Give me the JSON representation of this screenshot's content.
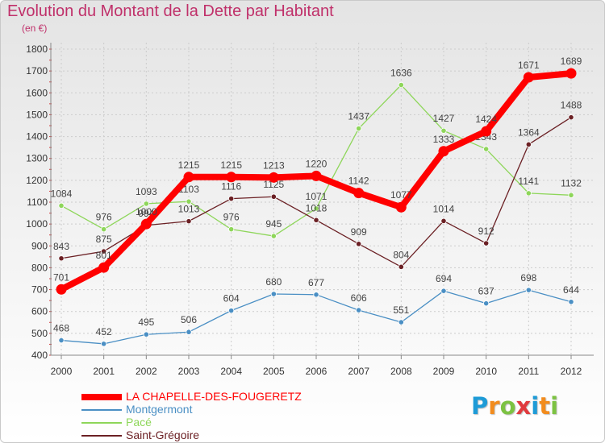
{
  "header": {
    "title": "Evolution du Montant de la Dette par Habitant",
    "subtitle": "(en €)"
  },
  "logo": {
    "letters": [
      "P",
      "r",
      "o",
      "x",
      "i",
      "t",
      "i"
    ],
    "colors": [
      "#1e9bd7",
      "#f28c1e",
      "#7cc242",
      "#e03a3e",
      "#1e9bd7",
      "#f28c1e",
      "#7cc242"
    ]
  },
  "colors": {
    "title": "#c0306a",
    "axis": "#888888",
    "grid": "#cccccc"
  },
  "chart_data": {
    "type": "line",
    "title": "Evolution du Montant de la Dette par Habitant",
    "subtitle": "(en €)",
    "x": [
      "2000",
      "2001",
      "2002",
      "2003",
      "2004",
      "2005",
      "2006",
      "2007",
      "2008",
      "2009",
      "2010",
      "2011",
      "2012"
    ],
    "ylim": [
      400,
      1800
    ],
    "yticks": [
      400,
      500,
      600,
      700,
      800,
      900,
      1000,
      1100,
      1200,
      1300,
      1400,
      1500,
      1600,
      1700,
      1800
    ],
    "grid": "dashed",
    "legend": "bottom-left",
    "series": [
      {
        "name": "Montgermont",
        "color": "#4a8fc4",
        "values": [
          468,
          452,
          495,
          506,
          604,
          680,
          677,
          606,
          551,
          694,
          637,
          698,
          644
        ]
      },
      {
        "name": "Pacé",
        "color": "#8ed65a",
        "values": [
          1084,
          976,
          1093,
          1103,
          976,
          945,
          1071,
          1437,
          1636,
          1427,
          1343,
          1141,
          1132
        ]
      },
      {
        "name": "Saint-Grégoire",
        "color": "#6b2024",
        "values": [
          843,
          875,
          994,
          1013,
          1116,
          1125,
          1018,
          909,
          804,
          1014,
          912,
          1364,
          1488
        ]
      },
      {
        "name": "LA CHAPELLE-DES-FOUGERETZ",
        "color": "#ff0000",
        "values": [
          701,
          801,
          1000,
          1215,
          1215,
          1213,
          1220,
          1142,
          1077,
          1333,
          1424,
          1671,
          1689
        ]
      }
    ]
  }
}
